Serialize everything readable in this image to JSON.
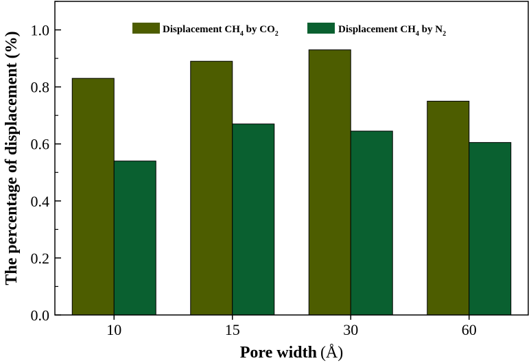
{
  "chart_data": {
    "type": "bar",
    "xlabel": "Pore width (Å)",
    "xlabel_main": "Pore width",
    "xlabel_unit": "(Å)",
    "ylabel": "The percentage of displacement (%)",
    "categories": [
      "10",
      "15",
      "30",
      "60"
    ],
    "ylim": [
      0,
      1.1
    ],
    "yticks": [
      0.0,
      0.2,
      0.4,
      0.6,
      0.8,
      1.0
    ],
    "ytick_labels": [
      "0.0",
      "0.2",
      "0.4",
      "0.6",
      "0.8",
      "1.0"
    ],
    "legend_position": "top-center",
    "grid": false,
    "series": [
      {
        "name": "Displacement CH4 by CO2",
        "legend_parts": [
          "Displacement CH",
          "4",
          " by CO",
          "2"
        ],
        "color": "#4d5d00",
        "values": [
          0.83,
          0.89,
          0.93,
          0.75
        ]
      },
      {
        "name": "Displacement CH4 by N2",
        "legend_parts": [
          "Displacement CH",
          "4",
          " by N",
          "2"
        ],
        "color": "#0a6030",
        "values": [
          0.54,
          0.67,
          0.645,
          0.605
        ]
      }
    ]
  }
}
